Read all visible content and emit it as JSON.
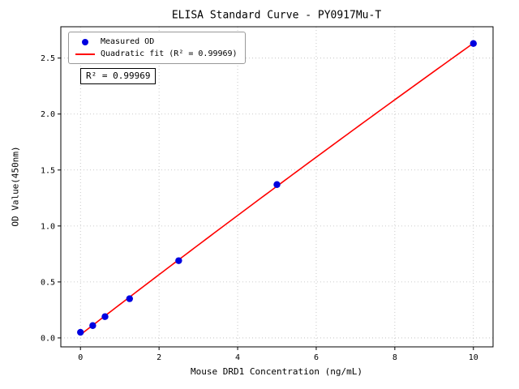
{
  "window": {
    "background": "#ffffff"
  },
  "chart_data": {
    "type": "scatter",
    "title": "ELISA Standard Curve - PY0917Mu-T",
    "xlabel": "Mouse DRD1 Concentration (ng/mL)",
    "ylabel": "OD Value(450nm)",
    "xlim": [
      -0.5,
      10.5
    ],
    "ylim": [
      -0.08,
      2.78
    ],
    "xtick_values": [
      0,
      2,
      4,
      6,
      8,
      10
    ],
    "xtick_labels": [
      "0",
      "2",
      "4",
      "6",
      "8",
      "10"
    ],
    "ytick_values": [
      0.0,
      0.5,
      1.0,
      1.5,
      2.0,
      2.5
    ],
    "ytick_labels": [
      "0.0",
      "0.5",
      "1.0",
      "1.5",
      "2.0",
      "2.5"
    ],
    "grid": true,
    "grid_style": "dotted",
    "legend_position": "upper-left",
    "annotation": "R² = 0.99969",
    "series": [
      {
        "name": "Measured OD",
        "type": "scatter",
        "color": "#0000e0",
        "marker": "circle",
        "x": [
          0,
          0.3125,
          0.625,
          1.25,
          2.5,
          5,
          10
        ],
        "y": [
          0.05,
          0.11,
          0.19,
          0.35,
          0.69,
          1.37,
          2.63
        ]
      },
      {
        "name": "Quadratic fit (R² = 0.99969)",
        "type": "quadratic-fit-line",
        "color": "#ff0000",
        "x_range": [
          0,
          10
        ]
      }
    ],
    "colors": {
      "frame": "#000000",
      "grid": "#bbbbbb",
      "tick_text": "#000000",
      "scatter": "#0000e0",
      "fit_line": "#ff0000"
    }
  }
}
